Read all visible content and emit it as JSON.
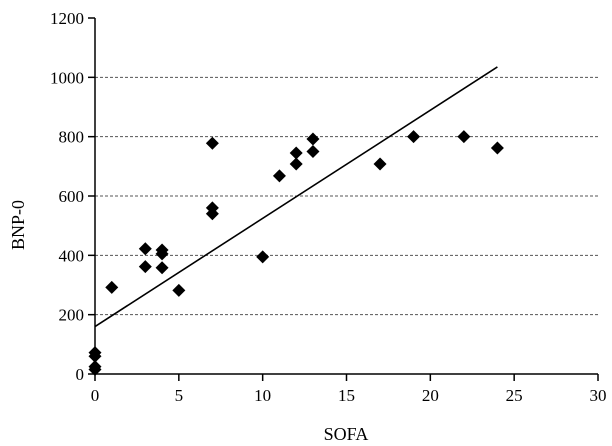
{
  "chart_data": {
    "type": "scatter",
    "title": "",
    "xlabel": "SOFA",
    "ylabel": "BNP-0",
    "xlim": [
      0,
      30
    ],
    "ylim": [
      0,
      1200
    ],
    "xticks": [
      0,
      5,
      10,
      15,
      20,
      25,
      30
    ],
    "yticks": [
      0,
      200,
      400,
      600,
      800,
      1000,
      1200
    ],
    "grid": "horizontal dashed",
    "marker": "diamond",
    "marker_color": "#000000",
    "points": [
      {
        "x": 0,
        "y": 15
      },
      {
        "x": 0,
        "y": 25
      },
      {
        "x": 0,
        "y": 60
      },
      {
        "x": 0,
        "y": 72
      },
      {
        "x": 1,
        "y": 292
      },
      {
        "x": 3,
        "y": 362
      },
      {
        "x": 3,
        "y": 422
      },
      {
        "x": 4,
        "y": 358
      },
      {
        "x": 4,
        "y": 405
      },
      {
        "x": 4,
        "y": 418
      },
      {
        "x": 5,
        "y": 282
      },
      {
        "x": 7,
        "y": 540
      },
      {
        "x": 7,
        "y": 560
      },
      {
        "x": 7,
        "y": 778
      },
      {
        "x": 10,
        "y": 395
      },
      {
        "x": 11,
        "y": 668
      },
      {
        "x": 12,
        "y": 708
      },
      {
        "x": 12,
        "y": 745
      },
      {
        "x": 13,
        "y": 750
      },
      {
        "x": 13,
        "y": 792
      },
      {
        "x": 17,
        "y": 708
      },
      {
        "x": 19,
        "y": 800
      },
      {
        "x": 22,
        "y": 800
      },
      {
        "x": 24,
        "y": 762
      }
    ],
    "trendline": {
      "x": [
        0,
        24
      ],
      "y": [
        160,
        1035
      ]
    }
  }
}
